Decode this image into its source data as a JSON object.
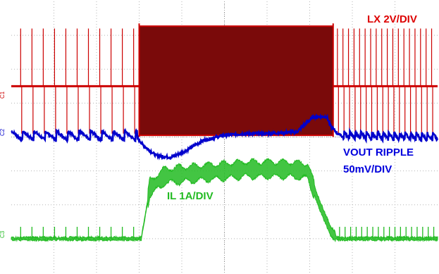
{
  "chart_data": {
    "type": "line",
    "title": "",
    "xlabel": "",
    "ylabel": "",
    "grid": true,
    "grid_divisions": {
      "x": 10,
      "y": 8
    },
    "x_units": "div",
    "xlim": [
      0,
      10
    ],
    "y_units": "div",
    "ylim": [
      0,
      8
    ],
    "series": [
      {
        "name": "LX 2V/DIV",
        "color": "#cc0000",
        "fill_color": "#7a0a0a",
        "channel_marker": "C1",
        "baseline_div": 5.5,
        "spike_top_div": 7.2,
        "spike_bottom_div": 4.1,
        "dense_switching_start_div": 3.0,
        "dense_switching_end_div": 7.55,
        "points": [
          [
            0.0,
            5.5
          ],
          [
            3.0,
            5.5
          ],
          [
            3.0,
            7.25
          ],
          [
            7.55,
            7.25
          ],
          [
            7.55,
            5.5
          ],
          [
            10.0,
            5.5
          ]
        ]
      },
      {
        "name": "VOUT RIPPLE 50mV/DIV",
        "color": "#0000cc",
        "channel_marker": "C2",
        "points": [
          [
            0.0,
            4.0
          ],
          [
            2.95,
            4.0
          ],
          [
            3.1,
            3.75
          ],
          [
            3.4,
            3.45
          ],
          [
            3.75,
            3.4
          ],
          [
            4.1,
            3.6
          ],
          [
            4.5,
            3.9
          ],
          [
            5.0,
            4.05
          ],
          [
            5.5,
            4.1
          ],
          [
            6.0,
            4.1
          ],
          [
            6.7,
            4.15
          ],
          [
            6.9,
            4.4
          ],
          [
            7.1,
            4.6
          ],
          [
            7.4,
            4.6
          ],
          [
            7.5,
            4.3
          ],
          [
            7.7,
            4.05
          ],
          [
            10.0,
            4.0
          ]
        ]
      },
      {
        "name": "IL 1A/DIV",
        "color": "#22bb22",
        "channel_marker": "C3",
        "points": [
          [
            0.0,
            1.0
          ],
          [
            3.05,
            1.0
          ],
          [
            3.25,
            2.5
          ],
          [
            3.6,
            2.85
          ],
          [
            4.5,
            2.95
          ],
          [
            5.5,
            3.05
          ],
          [
            6.5,
            3.05
          ],
          [
            6.95,
            3.0
          ],
          [
            7.2,
            2.1
          ],
          [
            7.5,
            1.2
          ],
          [
            7.65,
            1.0
          ],
          [
            10.0,
            1.0
          ]
        ]
      }
    ]
  },
  "labels": {
    "lx": "LX 2V/DIV",
    "vout_line1": "VOUT RIPPLE",
    "vout_line2": "50mV/DIV",
    "il": "IL 1A/DIV",
    "marker_c1": "C1",
    "marker_c2": "C2",
    "marker_c3": "C3"
  }
}
